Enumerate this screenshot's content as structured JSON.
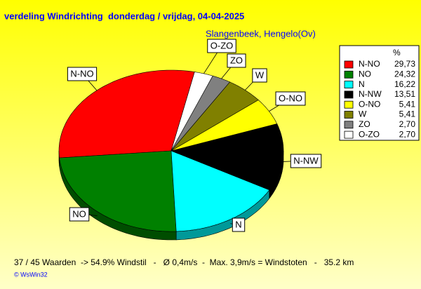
{
  "chart_data": {
    "type": "pie",
    "title": "verdeling Windrichting  donderdag / vrijdag, 04-04-2025",
    "subtitle": "Slangenbeek, Hengelo(Ov)",
    "legend_header": "%",
    "categories": [
      "N-NO",
      "NO",
      "N",
      "N-NW",
      "O-NO",
      "W",
      "ZO",
      "O-ZO"
    ],
    "values": [
      29.73,
      24.32,
      16.22,
      13.51,
      5.41,
      5.41,
      2.7,
      2.7
    ],
    "value_labels": [
      "29,73",
      "24,32",
      "16,22",
      "13,51",
      "5,41",
      "5,41",
      "2,70",
      "2,70"
    ],
    "colors": [
      "#ff0000",
      "#008000",
      "#00ffff",
      "#000000",
      "#ffff00",
      "#808000",
      "#808080",
      "#ffffff"
    ],
    "legend": "right",
    "footer": "37 / 45 Waarden  -> 54.9% Windstil   -   Ø 0,4m/s  -  Max. 3,9m/s = Windstoten   -   35.2 km",
    "credit": "© WsWin32"
  }
}
